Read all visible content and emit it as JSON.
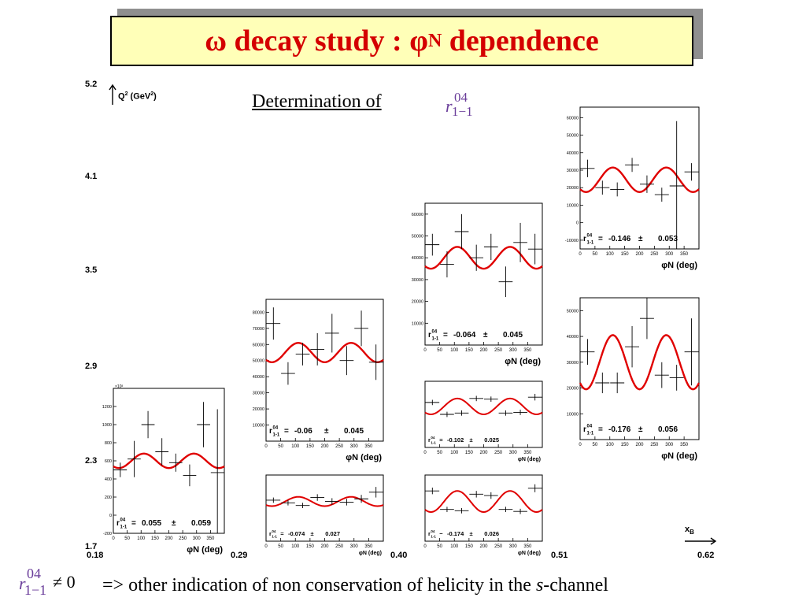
{
  "slide": {
    "title_main": "ω decay study : φ",
    "title_sub": "N",
    "title_end": " dependence",
    "determination": "Determination of",
    "r_symbol": {
      "r": "r",
      "sup": "04",
      "sub": "1−1"
    },
    "q2_label": "Q",
    "q2_sup": "2",
    "q2_unit": " (GeV",
    "q2_unit_sup": "2",
    "q2_close": ")",
    "xb_label": "x",
    "xb_sub": "B",
    "neq": "≠ 0",
    "bottom_text_a": "=> other indication of non conservation of helicity in the ",
    "bottom_text_s": "s",
    "bottom_text_b": "-channel",
    "q2_ticks": [
      "5.2",
      "4.1",
      "3.5",
      "2.9",
      "2.3",
      "1.7"
    ],
    "xb_ticks": [
      "0.18",
      "0.29",
      "0.40",
      "0.51",
      "0.62"
    ],
    "colors": {
      "title_text": "#d40000",
      "title_bg": "#ffffb8",
      "fit": "#e00000",
      "symbol": "#6a3d9a"
    }
  },
  "chart_data": [
    {
      "type": "scatter",
      "bin": "xB 0.18–0.29, Q2 1.7–2.9",
      "xlabel": "φN (deg)",
      "x_ticks": [
        "0",
        "50",
        "100",
        "150",
        "200",
        "250",
        "300",
        "350"
      ],
      "y_ticks": [
        "-200",
        "0",
        "200",
        "400",
        "600",
        "800",
        "1000",
        "1200"
      ],
      "y_multiplier": "×10³",
      "ylim": [
        -200,
        1400
      ],
      "x": [
        25,
        75,
        125,
        175,
        225,
        275,
        325,
        375
      ],
      "y": [
        500,
        620,
        1000,
        700,
        580,
        440,
        1000,
        470
      ],
      "yerr": [
        80,
        200,
        150,
        150,
        100,
        120,
        250,
        700
      ],
      "fit": {
        "mean": 600,
        "amp": 80,
        "phase": 110
      },
      "r_label": "r",
      "r_sup": "04",
      "r_sub": "1-1",
      "eq": "=",
      "r_value": "0.055",
      "pm": "±",
      "r_err": "0.059"
    },
    {
      "type": "scatter",
      "bin": "xB 0.29–0.40, Q2 2.3–3.5",
      "xlabel": "φN (deg)",
      "x_ticks": [
        "0",
        "50",
        "100",
        "150",
        "200",
        "250",
        "300",
        "350"
      ],
      "y_ticks": [
        "10000",
        "20000",
        "30000",
        "40000",
        "50000",
        "60000",
        "70000",
        "80000"
      ],
      "ylim": [
        0,
        88000
      ],
      "x": [
        25,
        75,
        125,
        175,
        225,
        275,
        325,
        375
      ],
      "y": [
        73000,
        42000,
        54000,
        57000,
        67000,
        50000,
        70000,
        49000
      ],
      "yerr": [
        10000,
        7000,
        7000,
        10000,
        12000,
        9000,
        11000,
        11000
      ],
      "fit": {
        "mean": 55000,
        "amp": 6000,
        "phase": 110
      },
      "r_label": "r",
      "r_sup": "04",
      "r_sub": "1-1",
      "eq": "=",
      "r_value": "-0.06",
      "pm": "±",
      "r_err": "0.045"
    },
    {
      "type": "scatter",
      "bin": "xB 0.29–0.40, Q2 1.7–2.3",
      "xlabel": "φN (deg)",
      "x_ticks": [
        "0",
        "50",
        "100",
        "150",
        "200",
        "250",
        "300",
        "350"
      ],
      "y_ticks": [],
      "ylim": [
        0,
        10
      ],
      "x": [
        25,
        75,
        125,
        175,
        225,
        275,
        325,
        375
      ],
      "y": [
        6.2,
        5.8,
        5.4,
        6.6,
        6.0,
        5.9,
        6.4,
        7.4
      ],
      "yerr": [
        0.4,
        0.4,
        0.4,
        0.5,
        0.5,
        0.5,
        0.6,
        0.8
      ],
      "fit": {
        "mean": 6.0,
        "amp": 0.7,
        "phase": 110
      },
      "r_label": "r",
      "r_sup": "04",
      "r_sub": "1-1",
      "eq": "=",
      "r_value": "-0.074",
      "pm": "±",
      "r_err": "0.027"
    },
    {
      "type": "scatter",
      "bin": "xB 0.40–0.51, Q2 2.9–4.1",
      "xlabel": "φN (deg)",
      "x_ticks": [
        "0",
        "50",
        "100",
        "150",
        "200",
        "250",
        "300",
        "350"
      ],
      "y_ticks": [
        "10000",
        "20000",
        "30000",
        "40000",
        "50000",
        "60000"
      ],
      "ylim": [
        0,
        65000
      ],
      "x": [
        25,
        75,
        125,
        175,
        225,
        275,
        325,
        375
      ],
      "y": [
        46000,
        37000,
        52000,
        40000,
        45000,
        29000,
        47000,
        44000
      ],
      "yerr": [
        5000,
        6000,
        8000,
        6000,
        6000,
        7000,
        9000,
        7000
      ],
      "fit": {
        "mean": 40000,
        "amp": 5000,
        "phase": 110
      },
      "r_label": "r",
      "r_sup": "04",
      "r_sub": "1-1",
      "eq": "=",
      "r_value": "-0.064",
      "pm": "±",
      "r_err": "0.045"
    },
    {
      "type": "scatter",
      "bin": "xB 0.40–0.51, Q2 2.3–2.9",
      "xlabel": "φN (deg)",
      "x_ticks": [
        "0",
        "50",
        "100",
        "150",
        "200",
        "250",
        "300",
        "350"
      ],
      "y_ticks": [],
      "ylim": [
        0,
        10
      ],
      "x": [
        25,
        75,
        125,
        175,
        225,
        275,
        325,
        375
      ],
      "y": [
        6.8,
        5.0,
        5.2,
        7.4,
        7.3,
        5.2,
        5.3,
        7.6
      ],
      "yerr": [
        0.4,
        0.4,
        0.4,
        0.4,
        0.4,
        0.4,
        0.4,
        0.5
      ],
      "fit": {
        "mean": 6.2,
        "amp": 1.2,
        "phase": 110
      },
      "r_label": "r",
      "r_sup": "04",
      "r_sub": "1-1",
      "eq": "=",
      "r_value": "-0.102",
      "pm": "±",
      "r_err": "0.025"
    },
    {
      "type": "scatter",
      "bin": "xB 0.40–0.51, Q2 1.7–2.3",
      "xlabel": "φN (deg)",
      "x_ticks": [
        "0",
        "50",
        "100",
        "150",
        "200",
        "250",
        "300",
        "350"
      ],
      "y_ticks": [],
      "ylim": [
        0,
        10
      ],
      "x": [
        25,
        75,
        125,
        175,
        225,
        275,
        325,
        375
      ],
      "y": [
        7.6,
        4.8,
        4.6,
        7.1,
        6.9,
        4.8,
        4.5,
        8.0
      ],
      "yerr": [
        0.5,
        0.4,
        0.4,
        0.5,
        0.5,
        0.4,
        0.4,
        0.6
      ],
      "fit": {
        "mean": 6.0,
        "amp": 1.6,
        "phase": 110
      },
      "r_label": "r",
      "r_sup": "04",
      "r_sub": "1-1",
      "eq": "−",
      "r_value": "-0.174",
      "pm": "±",
      "r_err": "0.026"
    },
    {
      "type": "scatter",
      "bin": "xB 0.51–0.62, Q2 3.5–5.2",
      "xlabel": "φN (deg)",
      "x_ticks": [
        "0",
        "50",
        "100",
        "150",
        "200",
        "250",
        "300",
        "350"
      ],
      "y_ticks": [
        "-10000",
        "0",
        "10000",
        "20000",
        "30000",
        "40000",
        "50000",
        "60000"
      ],
      "ylim": [
        -15000,
        66000
      ],
      "x": [
        25,
        75,
        125,
        175,
        225,
        275,
        325,
        375
      ],
      "y": [
        31000,
        20000,
        19000,
        33000,
        22000,
        16000,
        21000,
        29000
      ],
      "yerr": [
        5000,
        4000,
        4000,
        4000,
        5000,
        4000,
        37000,
        5000
      ],
      "fit": {
        "mean": 24500,
        "amp": 7000,
        "phase": 110
      },
      "r_label": "r",
      "r_sup": "04",
      "r_sub": "1-1",
      "eq": "=",
      "r_value": "-0.146",
      "pm": "±",
      "r_err": "0.053"
    },
    {
      "type": "scatter",
      "bin": "xB 0.51–0.62, Q2 2.3–3.5",
      "xlabel": "φN (deg)",
      "x_ticks": [
        "0",
        "50",
        "100",
        "150",
        "200",
        "250",
        "300",
        "350"
      ],
      "y_ticks": [
        "10000",
        "20000",
        "30000",
        "40000",
        "50000"
      ],
      "ylim": [
        0,
        55000
      ],
      "x": [
        25,
        75,
        125,
        175,
        225,
        275,
        325,
        375
      ],
      "y": [
        34000,
        22000,
        22000,
        36000,
        47000,
        25000,
        24000,
        34000
      ],
      "yerr": [
        5000,
        4000,
        4000,
        8000,
        8000,
        5000,
        5000,
        13000
      ],
      "fit": {
        "mean": 30000,
        "amp": 10500,
        "phase": 110
      },
      "r_label": "r",
      "r_sup": "04",
      "r_sub": "1-1",
      "eq": "=",
      "r_value": "-0.176",
      "pm": "±",
      "r_err": "0.056"
    }
  ]
}
